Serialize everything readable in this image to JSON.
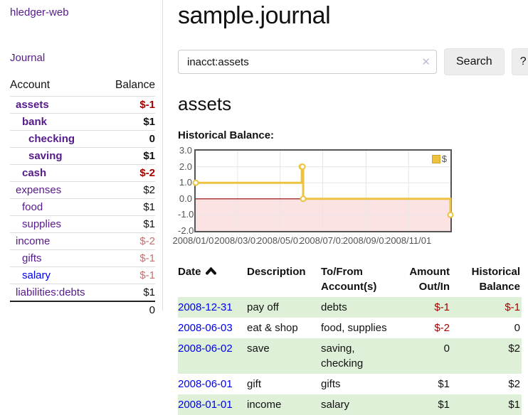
{
  "app": {
    "title": "hledger-web"
  },
  "sidebar": {
    "journal_link": "Journal",
    "account_header": "Account",
    "balance_header": "Balance",
    "accounts": [
      {
        "name": "assets",
        "balance": "$-1"
      },
      {
        "name": "bank",
        "balance": "$1"
      },
      {
        "name": "checking",
        "balance": "0"
      },
      {
        "name": "saving",
        "balance": "$1"
      },
      {
        "name": "cash",
        "balance": "$-2"
      },
      {
        "name": "expenses",
        "balance": "$2"
      },
      {
        "name": "food",
        "balance": "$1"
      },
      {
        "name": "supplies",
        "balance": "$1"
      },
      {
        "name": "income",
        "balance": "$-2"
      },
      {
        "name": "gifts",
        "balance": "$-1"
      },
      {
        "name": "salary",
        "balance": "$-1"
      },
      {
        "name": "liabilities:debts",
        "balance": "$1"
      }
    ],
    "total": "0"
  },
  "main": {
    "title": "sample.journal",
    "search": {
      "value": "inacct:assets",
      "clear_icon": "✕",
      "button_label": "Search",
      "help_label": "?"
    },
    "account_heading": "assets",
    "chart_title": "Historical Balance:"
  },
  "chart_data": {
    "type": "line",
    "step": true,
    "title": "Historical Balance:",
    "series": [
      {
        "name": "$",
        "color": "#edc240",
        "points": [
          {
            "x": "2008-01-01",
            "y": 1
          },
          {
            "x": "2008-06-01",
            "y": 2
          },
          {
            "x": "2008-06-02",
            "y": 2
          },
          {
            "x": "2008-06-03",
            "y": 0
          },
          {
            "x": "2008-12-31",
            "y": -1
          }
        ]
      }
    ],
    "xrange": [
      "2008-01-01",
      "2008-12-31"
    ],
    "ylim": [
      -2,
      3
    ],
    "xticks": [
      {
        "x": "2008-01-01",
        "label": "2008/01/01"
      },
      {
        "x": "2008-03-01",
        "label": "2008/03/01"
      },
      {
        "x": "2008-05-01",
        "label": "2008/05/01"
      },
      {
        "x": "2008-07-01",
        "label": "2008/07/01"
      },
      {
        "x": "2008-09-01",
        "label": "2008/09/01"
      },
      {
        "x": "2008-11-01",
        "label": "2008/11/01"
      }
    ],
    "yticks": [
      {
        "v": 3,
        "label": "3.0"
      },
      {
        "v": 2,
        "label": "2.0"
      },
      {
        "v": 1,
        "label": "1.0"
      },
      {
        "v": 0,
        "label": "0.0"
      },
      {
        "v": -1,
        "label": "-1.0"
      },
      {
        "v": -2,
        "label": "-2.0"
      }
    ],
    "grid": true,
    "negative_region_shaded": true,
    "legend": {
      "label": "$",
      "position": "top-right"
    }
  },
  "register": {
    "headers": {
      "date": "Date",
      "description": "Description",
      "accounts": "To/From Account(s)",
      "amount": "Amount Out/In",
      "balance": "Historical Balance"
    },
    "rows": [
      {
        "date": "2008-12-31",
        "description": "pay off",
        "accounts": "debts",
        "amount": "$-1",
        "balance": "$-1"
      },
      {
        "date": "2008-06-03",
        "description": "eat & shop",
        "accounts": "food, supplies",
        "amount": "$-2",
        "balance": "0"
      },
      {
        "date": "2008-06-02",
        "description": "save",
        "accounts": "saving, checking",
        "amount": "0",
        "balance": "$2"
      },
      {
        "date": "2008-06-01",
        "description": "gift",
        "accounts": "gifts",
        "amount": "$1",
        "balance": "$2"
      },
      {
        "date": "2008-01-01",
        "description": "income",
        "accounts": "salary",
        "amount": "$1",
        "balance": "$1"
      }
    ]
  },
  "colors": {
    "accent_purple": "#551a8b",
    "link_blue": "#0000ee",
    "negative_strong": "#a40000",
    "negative_soft": "#bf7272",
    "stripe_green": "#dff0d8",
    "series_yellow": "#edc240",
    "zero_line_red": "#8b0000",
    "negative_fill_pink": "#fbe3e3",
    "chart_frame_gray": "#545454"
  }
}
